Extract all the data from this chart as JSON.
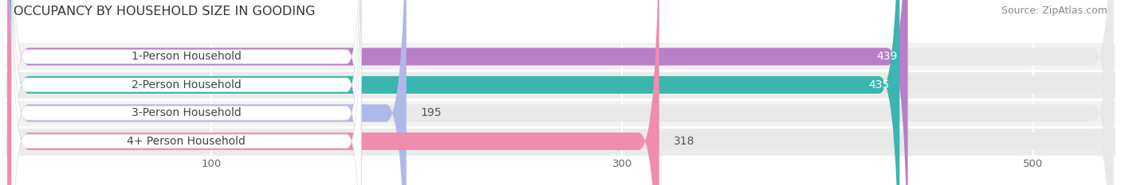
{
  "title": "OCCUPANCY BY HOUSEHOLD SIZE IN GOODING",
  "source": "Source: ZipAtlas.com",
  "categories": [
    "1-Person Household",
    "2-Person Household",
    "3-Person Household",
    "4+ Person Household"
  ],
  "values": [
    439,
    435,
    195,
    318
  ],
  "bar_colors": [
    "#b87ec8",
    "#3ab5b0",
    "#b0b8e8",
    "#f08cad"
  ],
  "bar_height": 0.62,
  "xlim": [
    0,
    540
  ],
  "xticks": [
    100,
    300,
    500
  ],
  "title_fontsize": 11.5,
  "source_fontsize": 9,
  "label_fontsize": 10,
  "value_fontsize": 10,
  "tick_fontsize": 9.5,
  "background_color": "#ffffff",
  "bar_bg_color": "#e8e8e8",
  "row_bg_colors": [
    "#f5f5f5",
    "#f5f5f5",
    "#f5f5f5",
    "#f5f5f5"
  ],
  "grid_color": "#cccccc"
}
